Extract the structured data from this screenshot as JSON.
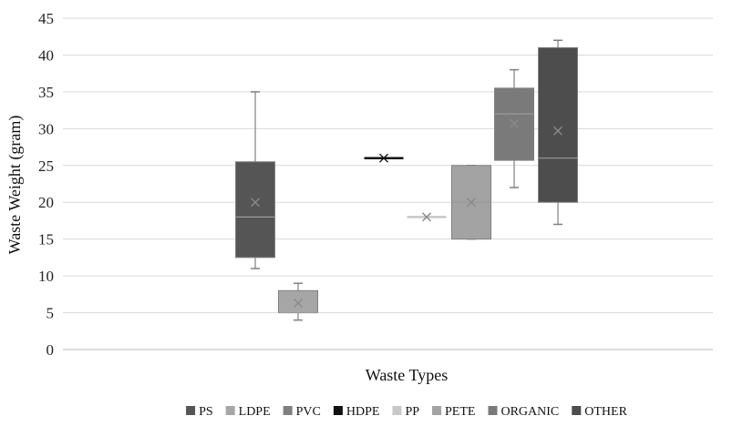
{
  "chart_data": {
    "type": "box",
    "title": "",
    "xlabel": "Waste Types",
    "ylabel": "Waste Weight (gram)",
    "ylim": [
      0,
      45
    ],
    "yticks": [
      0,
      5,
      10,
      15,
      20,
      25,
      30,
      35,
      40,
      45
    ],
    "grid": true,
    "legend_position": "bottom",
    "series": [
      {
        "name": "PS",
        "color": "#555555",
        "min": 11,
        "q1": 12.5,
        "median": 18,
        "q3": 25.5,
        "max": 35,
        "mean": 20
      },
      {
        "name": "LDPE",
        "color": "#a6a6a6",
        "min": 4,
        "q1": 5,
        "median": 5,
        "q3": 8,
        "max": 9,
        "mean": 6.3
      },
      {
        "name": "PVC",
        "color": "#7f7f7f",
        "min": null,
        "q1": null,
        "median": null,
        "q3": null,
        "max": null,
        "mean": null
      },
      {
        "name": "HDPE",
        "color": "#111111",
        "min": 26,
        "q1": 26,
        "median": 26,
        "q3": 26,
        "max": 26,
        "mean": 26
      },
      {
        "name": "PP",
        "color": "#c8c8c8",
        "min": 18,
        "q1": 18,
        "median": 18,
        "q3": 18,
        "max": 18,
        "mean": 18
      },
      {
        "name": "PETE",
        "color": "#a3a3a3",
        "min": 15,
        "q1": 15,
        "median": 20,
        "q3": 25,
        "max": 25,
        "mean": 20
      },
      {
        "name": "ORGANIC",
        "color": "#7a7a7a",
        "min": 22,
        "q1": 25.7,
        "median": 32,
        "q3": 35.5,
        "max": 38,
        "mean": 30.7
      },
      {
        "name": "OTHER",
        "color": "#4d4d4d",
        "min": 17,
        "q1": 20,
        "median": 26,
        "q3": 41,
        "max": 42,
        "mean": 29.7
      }
    ]
  }
}
